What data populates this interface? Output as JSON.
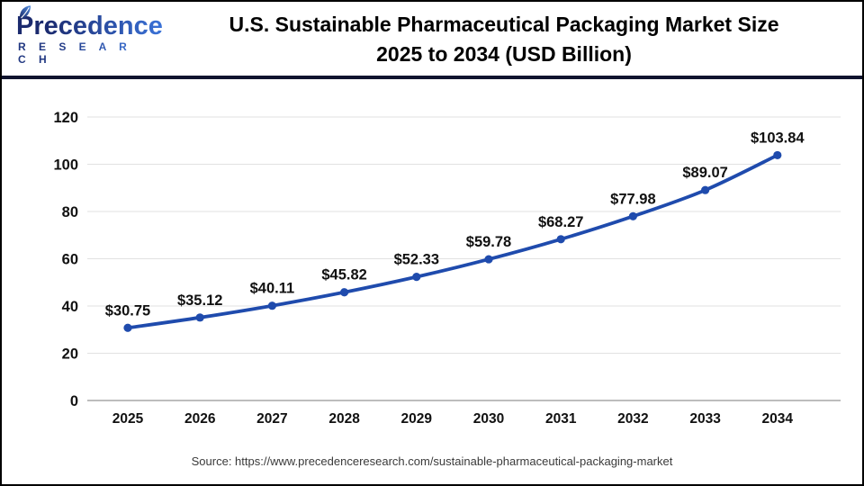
{
  "header": {
    "logo": {
      "name": "Precedence",
      "subtitle": "R E S E A R C H"
    },
    "title_line1": "U.S. Sustainable Pharmaceutical Packaging Market Size",
    "title_line2": "2025 to 2034 (USD Billion)"
  },
  "chart_data": {
    "type": "line",
    "title": "U.S. Sustainable Pharmaceutical Packaging Market Size 2025 to 2034 (USD Billion)",
    "categories": [
      "2025",
      "2026",
      "2027",
      "2028",
      "2029",
      "2030",
      "2031",
      "2032",
      "2033",
      "2034"
    ],
    "values": [
      30.75,
      35.12,
      40.11,
      45.82,
      52.33,
      59.78,
      68.27,
      77.98,
      89.07,
      103.84
    ],
    "point_labels": [
      "$30.75",
      "$35.12",
      "$40.11",
      "$45.82",
      "$52.33",
      "$59.78",
      "$68.27",
      "$77.98",
      "$89.07",
      "$103.84"
    ],
    "xlabel": "",
    "ylabel": "",
    "ylim": [
      0,
      120
    ],
    "yticks": [
      0,
      20,
      40,
      60,
      80,
      100,
      120
    ],
    "grid": true,
    "legend": "none",
    "line_color": "#1f4bad",
    "marker_color": "#1f4bad",
    "grid_color": "#e2e2e2",
    "zero_axis_color": "#bdbdbd",
    "label_color": "#111111",
    "tick_color": "#111111"
  },
  "footer": {
    "source": "Source: https://www.precedenceresearch.com/sustainable-pharmaceutical-packaging-market"
  }
}
